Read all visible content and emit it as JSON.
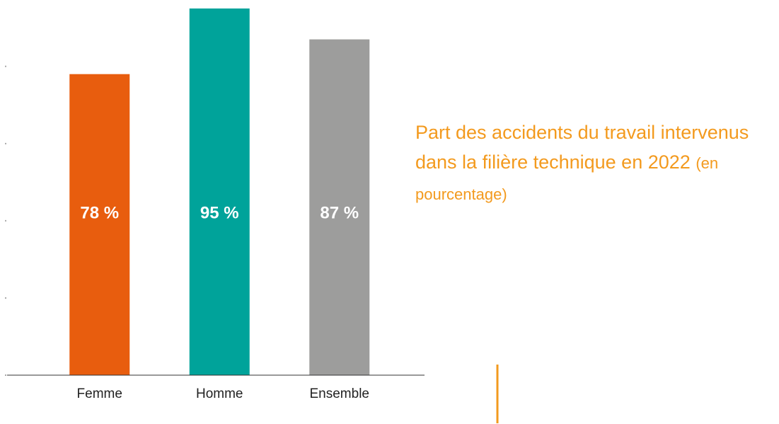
{
  "chart_data": {
    "type": "bar",
    "title": "Part des accidents du travail intervenus dans la filière technique en 2022",
    "subtitle": "(en pourcentage)",
    "categories": [
      "Femme",
      "Homme",
      "Ensemble"
    ],
    "values": [
      78,
      95,
      87
    ],
    "value_labels": [
      "78 %",
      "95 %",
      "87 %"
    ],
    "colors": [
      "#e85d0e",
      "#00a39a",
      "#9d9d9c"
    ],
    "ylim": [
      0,
      95
    ],
    "yticks": [
      0,
      20,
      40,
      60,
      80
    ],
    "grid": false
  }
}
